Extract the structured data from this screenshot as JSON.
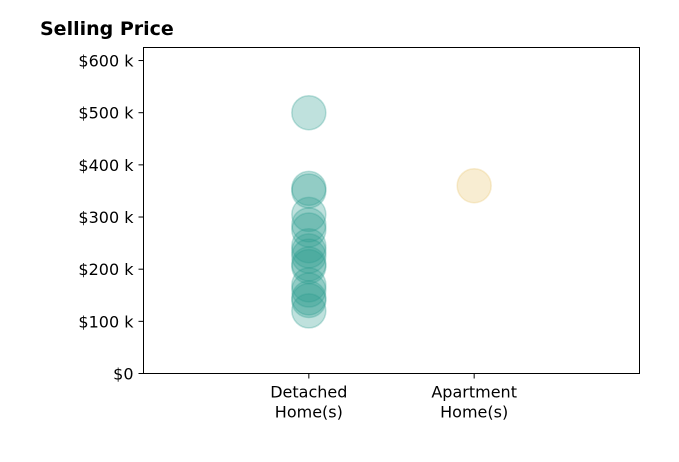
{
  "chart_data": {
    "type": "scatter",
    "title": "Selling Price",
    "xlabel": "",
    "ylabel": "",
    "grid": false,
    "legend": "none",
    "categories": [
      [
        "Detached",
        "Home(s)"
      ],
      [
        "Apartment",
        "Home(s)"
      ]
    ],
    "xlim": [
      0,
      3
    ],
    "ylim": [
      0,
      625000
    ],
    "yticks": [
      0,
      100000,
      200000,
      300000,
      400000,
      500000,
      600000
    ],
    "ytick_labels": [
      "$0",
      "$100 k",
      "$200 k",
      "$300 k",
      "$400 k",
      "$500 k",
      "$600 k"
    ],
    "series": [
      {
        "category_index": 0,
        "color": "#2a9d8f",
        "opacity": 0.3,
        "values": [
          500000,
          355000,
          350000,
          305000,
          285000,
          275000,
          245000,
          235000,
          225000,
          210000,
          205000,
          170000,
          160000,
          145000,
          140000,
          120000
        ]
      },
      {
        "category_index": 1,
        "color": "#e9c46a",
        "opacity": 0.3,
        "values": [
          360000
        ]
      }
    ]
  }
}
